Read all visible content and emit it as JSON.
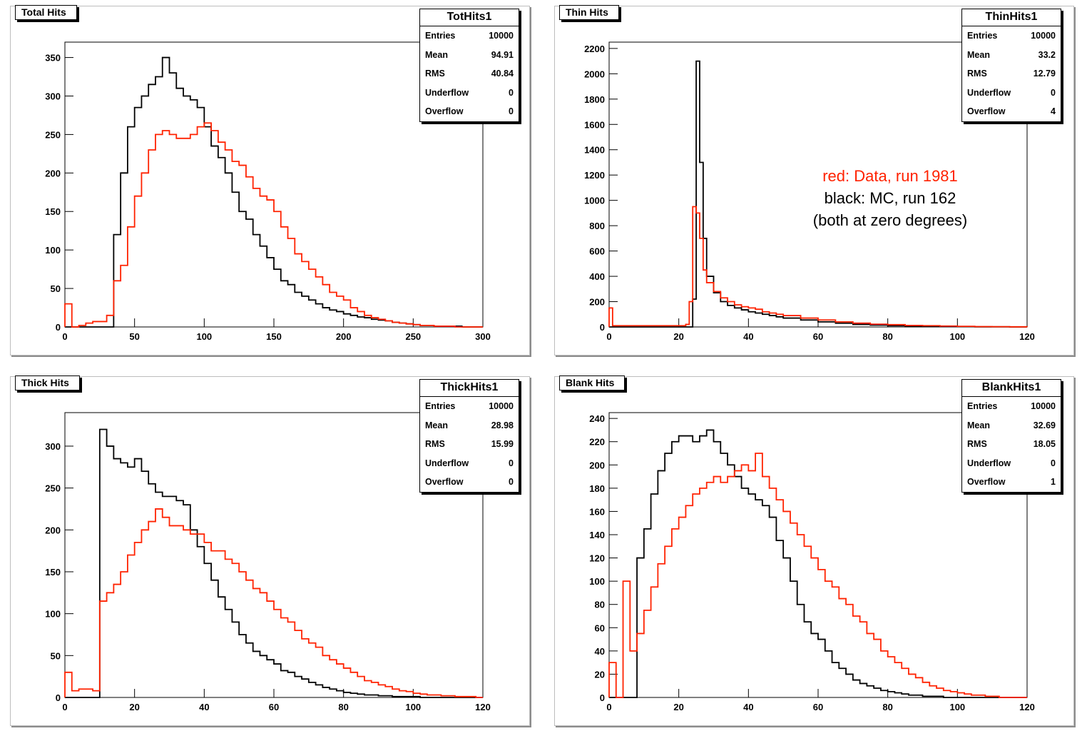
{
  "panels": [
    {
      "id": "tothits",
      "title": "Total Hits",
      "hist_name": "TotHits1",
      "stats": {
        "entries": "10000",
        "mean": "94.91",
        "rms": "40.84",
        "underflow": "0",
        "overflow": "0"
      }
    },
    {
      "id": "thinhits",
      "title": "Thin Hits",
      "hist_name": "ThinHits1",
      "stats": {
        "entries": "10000",
        "mean": "33.2",
        "rms": "12.79",
        "underflow": "0",
        "overflow": "4"
      }
    },
    {
      "id": "thickhits",
      "title": "Thick Hits",
      "hist_name": "ThickHits1",
      "stats": {
        "entries": "10000",
        "mean": "28.98",
        "rms": "15.99",
        "underflow": "0",
        "overflow": "0"
      }
    },
    {
      "id": "blankhits",
      "title": "Blank Hits",
      "hist_name": "BlankHits1",
      "stats": {
        "entries": "10000",
        "mean": "32.69",
        "rms": "18.05",
        "underflow": "0",
        "overflow": "1"
      }
    }
  ],
  "stat_labels": {
    "entries": "Entries",
    "mean": "Mean",
    "rms": "RMS",
    "underflow": "Underflow",
    "overflow": "Overflow"
  },
  "legend": {
    "line1": "red: Data, run 1981",
    "line2": "black: MC, run 162",
    "line3": "(both at zero degrees)"
  },
  "colors": {
    "data": "#ff2200",
    "mc": "#000000"
  },
  "chart_data": [
    {
      "type": "histogram",
      "title": "Total Hits",
      "xlim": [
        0,
        300
      ],
      "ylim": [
        0,
        370
      ],
      "xticks": [
        0,
        50,
        100,
        150,
        200,
        250,
        300
      ],
      "yticks": [
        0,
        50,
        100,
        150,
        200,
        250,
        300,
        350
      ],
      "series": [
        {
          "color": "#ff2200",
          "x": [
            0,
            5,
            10,
            15,
            20,
            25,
            30,
            35,
            40,
            45,
            50,
            55,
            60,
            65,
            70,
            75,
            80,
            85,
            90,
            95,
            100,
            105,
            110,
            115,
            120,
            125,
            130,
            135,
            140,
            145,
            150,
            155,
            160,
            165,
            170,
            175,
            180,
            185,
            190,
            195,
            200,
            205,
            210,
            215,
            220,
            225,
            230,
            235,
            240,
            245,
            250,
            255,
            260,
            265,
            270,
            275,
            280,
            285,
            290,
            295,
            300
          ],
          "y": [
            30,
            0,
            2,
            5,
            7,
            7,
            15,
            60,
            80,
            130,
            170,
            200,
            230,
            250,
            255,
            250,
            245,
            245,
            250,
            260,
            265,
            255,
            240,
            230,
            215,
            210,
            195,
            180,
            170,
            165,
            150,
            130,
            115,
            95,
            85,
            75,
            65,
            55,
            45,
            40,
            35,
            25,
            20,
            15,
            12,
            10,
            8,
            6,
            5,
            4,
            3,
            2,
            2,
            1,
            1,
            1,
            0,
            0,
            0,
            0,
            0
          ]
        },
        {
          "color": "#000000",
          "x": [
            0,
            5,
            10,
            15,
            20,
            25,
            30,
            35,
            40,
            45,
            50,
            55,
            60,
            65,
            70,
            75,
            80,
            85,
            90,
            95,
            100,
            105,
            110,
            115,
            120,
            125,
            130,
            135,
            140,
            145,
            150,
            155,
            160,
            165,
            170,
            175,
            180,
            185,
            190,
            195,
            200,
            205,
            210,
            215,
            220,
            225,
            230,
            235,
            240,
            245,
            250,
            255,
            260,
            265,
            270,
            275,
            280,
            285,
            290,
            295,
            300
          ],
          "y": [
            0,
            0,
            0,
            0,
            0,
            0,
            0,
            120,
            200,
            260,
            285,
            300,
            315,
            325,
            350,
            330,
            310,
            300,
            295,
            285,
            260,
            235,
            220,
            200,
            175,
            150,
            140,
            120,
            105,
            90,
            75,
            60,
            55,
            45,
            40,
            35,
            30,
            25,
            22,
            20,
            17,
            15,
            13,
            12,
            10,
            9,
            8,
            6,
            5,
            4,
            3,
            2,
            2,
            1,
            1,
            1,
            1,
            0,
            0,
            0,
            0
          ]
        }
      ]
    },
    {
      "type": "histogram",
      "title": "Thin Hits",
      "xlim": [
        0,
        120
      ],
      "ylim": [
        0,
        2250
      ],
      "xticks": [
        0,
        20,
        40,
        60,
        80,
        100,
        120
      ],
      "yticks": [
        0,
        200,
        400,
        600,
        800,
        1000,
        1200,
        1400,
        1600,
        1800,
        2000,
        2200
      ],
      "series": [
        {
          "color": "#ff2200",
          "x": [
            0,
            1,
            2,
            4,
            6,
            8,
            10,
            12,
            14,
            16,
            18,
            20,
            22,
            23,
            24,
            25,
            26,
            27,
            28,
            30,
            32,
            34,
            36,
            38,
            40,
            42,
            44,
            46,
            48,
            50,
            55,
            60,
            65,
            70,
            75,
            80,
            85,
            90,
            95,
            100,
            105,
            110,
            115,
            120
          ],
          "y": [
            150,
            10,
            10,
            10,
            10,
            10,
            10,
            10,
            10,
            10,
            10,
            10,
            20,
            200,
            950,
            900,
            700,
            450,
            350,
            280,
            230,
            200,
            175,
            160,
            150,
            140,
            120,
            110,
            100,
            90,
            70,
            55,
            40,
            30,
            22,
            18,
            12,
            10,
            7,
            5,
            3,
            2,
            1,
            0
          ]
        },
        {
          "color": "#000000",
          "x": [
            0,
            1,
            2,
            4,
            6,
            8,
            10,
            12,
            14,
            16,
            18,
            20,
            22,
            23,
            24,
            25,
            26,
            27,
            28,
            30,
            32,
            34,
            36,
            38,
            40,
            42,
            44,
            46,
            48,
            50,
            55,
            60,
            65,
            70,
            75,
            80,
            85,
            90,
            95,
            100,
            105,
            110,
            115,
            120
          ],
          "y": [
            0,
            0,
            0,
            0,
            0,
            0,
            0,
            0,
            0,
            0,
            0,
            0,
            0,
            0,
            220,
            2100,
            1300,
            700,
            400,
            270,
            200,
            170,
            150,
            135,
            120,
            110,
            100,
            90,
            80,
            70,
            55,
            40,
            30,
            20,
            15,
            10,
            7,
            5,
            3,
            2,
            1,
            1,
            0,
            0
          ]
        }
      ]
    },
    {
      "type": "histogram",
      "title": "Thick Hits",
      "xlim": [
        0,
        120
      ],
      "ylim": [
        0,
        340
      ],
      "xticks": [
        0,
        20,
        40,
        60,
        80,
        100,
        120
      ],
      "yticks": [
        0,
        50,
        100,
        150,
        200,
        250,
        300
      ],
      "series": [
        {
          "color": "#ff2200",
          "x": [
            0,
            2,
            4,
            6,
            8,
            10,
            12,
            14,
            16,
            18,
            20,
            22,
            24,
            26,
            28,
            30,
            32,
            34,
            36,
            38,
            40,
            42,
            44,
            46,
            48,
            50,
            52,
            54,
            56,
            58,
            60,
            62,
            64,
            66,
            68,
            70,
            72,
            74,
            76,
            78,
            80,
            82,
            84,
            86,
            88,
            90,
            92,
            94,
            96,
            98,
            100,
            102,
            104,
            106,
            108,
            110,
            112,
            114,
            116,
            118,
            120
          ],
          "y": [
            30,
            8,
            10,
            10,
            8,
            115,
            125,
            135,
            150,
            170,
            185,
            200,
            210,
            225,
            215,
            205,
            205,
            200,
            195,
            195,
            185,
            175,
            175,
            165,
            160,
            150,
            140,
            130,
            125,
            115,
            105,
            95,
            90,
            80,
            70,
            65,
            60,
            50,
            45,
            40,
            35,
            30,
            25,
            20,
            18,
            15,
            13,
            10,
            8,
            7,
            5,
            4,
            3,
            3,
            2,
            2,
            1,
            1,
            1,
            0,
            0
          ]
        },
        {
          "color": "#000000",
          "x": [
            0,
            2,
            4,
            6,
            8,
            10,
            12,
            14,
            16,
            18,
            20,
            22,
            24,
            26,
            28,
            30,
            32,
            34,
            36,
            38,
            40,
            42,
            44,
            46,
            48,
            50,
            52,
            54,
            56,
            58,
            60,
            62,
            64,
            66,
            68,
            70,
            72,
            74,
            76,
            78,
            80,
            82,
            84,
            86,
            88,
            90,
            92,
            94,
            96,
            98,
            100,
            102,
            104,
            106,
            108,
            110,
            112,
            114,
            116,
            118,
            120
          ],
          "y": [
            0,
            0,
            0,
            0,
            0,
            320,
            300,
            285,
            280,
            275,
            285,
            270,
            255,
            245,
            240,
            240,
            235,
            230,
            200,
            180,
            160,
            140,
            120,
            105,
            90,
            75,
            65,
            55,
            50,
            45,
            40,
            32,
            30,
            25,
            22,
            18,
            15,
            12,
            10,
            8,
            6,
            5,
            4,
            3,
            3,
            2,
            2,
            1,
            1,
            1,
            1,
            0,
            0,
            0,
            0,
            0,
            0,
            0,
            0,
            0,
            0
          ]
        }
      ]
    },
    {
      "type": "histogram",
      "title": "Blank Hits",
      "xlim": [
        0,
        120
      ],
      "ylim": [
        0,
        245
      ],
      "xticks": [
        0,
        20,
        40,
        60,
        80,
        100,
        120
      ],
      "yticks": [
        0,
        20,
        40,
        60,
        80,
        100,
        120,
        140,
        160,
        180,
        200,
        220,
        240
      ],
      "series": [
        {
          "color": "#ff2200",
          "x": [
            0,
            2,
            4,
            6,
            8,
            10,
            12,
            14,
            16,
            18,
            20,
            22,
            24,
            26,
            28,
            30,
            32,
            34,
            36,
            38,
            40,
            42,
            44,
            46,
            48,
            50,
            52,
            54,
            56,
            58,
            60,
            62,
            64,
            66,
            68,
            70,
            72,
            74,
            76,
            78,
            80,
            82,
            84,
            86,
            88,
            90,
            92,
            94,
            96,
            98,
            100,
            102,
            104,
            106,
            108,
            110,
            112,
            114,
            116,
            118,
            120
          ],
          "y": [
            30,
            0,
            100,
            40,
            55,
            75,
            95,
            115,
            130,
            145,
            155,
            165,
            175,
            180,
            185,
            190,
            185,
            190,
            195,
            200,
            195,
            210,
            190,
            180,
            170,
            160,
            150,
            140,
            130,
            120,
            110,
            100,
            95,
            85,
            80,
            70,
            65,
            55,
            50,
            40,
            35,
            30,
            25,
            20,
            17,
            13,
            10,
            8,
            6,
            5,
            4,
            3,
            2,
            2,
            1,
            1,
            0,
            0,
            0,
            0,
            0
          ]
        },
        {
          "color": "#000000",
          "x": [
            0,
            2,
            4,
            6,
            8,
            10,
            12,
            14,
            16,
            18,
            20,
            22,
            24,
            26,
            28,
            30,
            32,
            34,
            36,
            38,
            40,
            42,
            44,
            46,
            48,
            50,
            52,
            54,
            56,
            58,
            60,
            62,
            64,
            66,
            68,
            70,
            72,
            74,
            76,
            78,
            80,
            82,
            84,
            86,
            88,
            90,
            92,
            94,
            96,
            98,
            100,
            102,
            104,
            106,
            108,
            110,
            112,
            114,
            116,
            118,
            120
          ],
          "y": [
            0,
            0,
            0,
            0,
            120,
            145,
            175,
            195,
            210,
            220,
            225,
            225,
            220,
            225,
            230,
            220,
            210,
            200,
            190,
            180,
            175,
            170,
            165,
            155,
            135,
            120,
            100,
            80,
            65,
            55,
            50,
            40,
            30,
            25,
            20,
            15,
            12,
            10,
            8,
            6,
            5,
            4,
            3,
            2,
            2,
            1,
            1,
            1,
            0,
            0,
            0,
            0,
            0,
            0,
            0,
            0,
            0,
            0,
            0,
            0,
            0
          ]
        }
      ]
    }
  ]
}
